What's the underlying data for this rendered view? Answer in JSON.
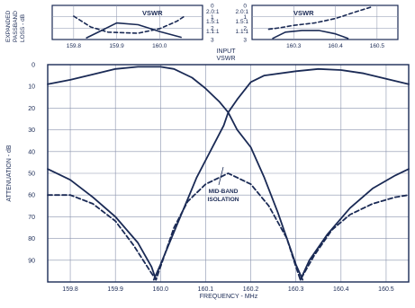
{
  "chart_data": [
    {
      "type": "line",
      "panel": "expanded-passband-left",
      "ylabel_lines": [
        "EXPANDED",
        "PASSBAND",
        "LOSS - dB"
      ],
      "xlim": [
        159.75,
        160.1
      ],
      "ylim": [
        0,
        3
      ],
      "x_ticks": [
        "159.8",
        "159.9",
        "160.0"
      ],
      "y_ticks": [
        "0",
        "1",
        "2",
        "3"
      ],
      "vswr_ticks": [
        "2.0:1",
        "1.5:1",
        "1.1:1"
      ],
      "vswr_label": "VSWR",
      "series": [
        {
          "style": "solid",
          "points": [
            [
              159.83,
              2.85
            ],
            [
              159.86,
              2.3
            ],
            [
              159.9,
              1.55
            ],
            [
              159.95,
              1.7
            ],
            [
              160.0,
              2.3
            ],
            [
              160.05,
              2.8
            ]
          ]
        },
        {
          "style": "dashed",
          "points": [
            [
              159.8,
              0.95
            ],
            [
              159.84,
              1.9
            ],
            [
              159.88,
              2.35
            ],
            [
              159.95,
              2.45
            ],
            [
              160.0,
              2.05
            ],
            [
              160.04,
              1.4
            ],
            [
              160.06,
              0.9
            ]
          ]
        }
      ]
    },
    {
      "type": "line",
      "panel": "expanded-passband-right",
      "xlim": [
        160.2,
        160.55
      ],
      "ylim": [
        0,
        3
      ],
      "x_ticks": [
        "160.3",
        "160.4",
        "160.5"
      ],
      "y_ticks": [
        "0",
        "1",
        "2",
        "3"
      ],
      "vswr_ticks": [
        "2.0:1",
        "1.5:1",
        "1.1:1"
      ],
      "vswr_label": "VSWR",
      "series": [
        {
          "style": "solid",
          "points": [
            [
              160.25,
              2.9
            ],
            [
              160.28,
              2.35
            ],
            [
              160.32,
              2.2
            ],
            [
              160.36,
              2.2
            ],
            [
              160.4,
              2.5
            ],
            [
              160.43,
              2.9
            ]
          ]
        },
        {
          "style": "dashed",
          "points": [
            [
              160.24,
              2.1
            ],
            [
              160.27,
              1.95
            ],
            [
              160.3,
              1.75
            ],
            [
              160.35,
              1.55
            ],
            [
              160.4,
              1.15
            ],
            [
              160.45,
              0.55
            ],
            [
              160.49,
              0.1
            ]
          ]
        }
      ]
    },
    {
      "type": "line",
      "panel": "main-attenuation",
      "xlabel": "FREQUENCY - MHz",
      "ylabel": "ATTENUATION - dB",
      "xlim": [
        159.75,
        160.55
      ],
      "ylim": [
        0,
        100
      ],
      "x_ticks": [
        "159.8",
        "159.9",
        "160.0",
        "160.1",
        "160.2",
        "160.3",
        "160.4",
        "160.5"
      ],
      "y_ticks": [
        "0",
        "10",
        "20",
        "30",
        "40",
        "50",
        "60",
        "70",
        "80",
        "90"
      ],
      "annotations": [
        "INPUT VSWR",
        "MID-BAND ISOLATION"
      ],
      "series": [
        {
          "style": "solid",
          "role": "passband-1",
          "points": [
            [
              159.75,
              9
            ],
            [
              159.8,
              7
            ],
            [
              159.85,
              4.5
            ],
            [
              159.9,
              2
            ],
            [
              159.95,
              1
            ],
            [
              160.0,
              1
            ],
            [
              160.03,
              2
            ],
            [
              160.07,
              6
            ],
            [
              160.1,
              11
            ],
            [
              160.13,
              17
            ],
            [
              160.15,
              22
            ],
            [
              160.17,
              30
            ],
            [
              160.2,
              38
            ],
            [
              160.23,
              52
            ],
            [
              160.26,
              68
            ],
            [
              160.28,
              80
            ],
            [
              160.3,
              92
            ],
            [
              160.315,
              99
            ]
          ]
        },
        {
          "style": "solid",
          "role": "passband-2",
          "points": [
            [
              159.985,
              99
            ],
            [
              160.0,
              92
            ],
            [
              160.03,
              77
            ],
            [
              160.06,
              62
            ],
            [
              160.08,
              52
            ],
            [
              160.1,
              44
            ],
            [
              160.12,
              36
            ],
            [
              160.14,
              28
            ],
            [
              160.15,
              22
            ],
            [
              160.17,
              16
            ],
            [
              160.2,
              8
            ],
            [
              160.23,
              5
            ],
            [
              160.3,
              3
            ],
            [
              160.35,
              2
            ],
            [
              160.4,
              2.5
            ],
            [
              160.45,
              4
            ],
            [
              160.5,
              6.5
            ],
            [
              160.55,
              9
            ]
          ]
        },
        {
          "style": "solid",
          "role": "outer-left",
          "points": [
            [
              159.75,
              48
            ],
            [
              159.8,
              53
            ],
            [
              159.85,
              61
            ],
            [
              159.9,
              70
            ],
            [
              159.95,
              82
            ],
            [
              159.98,
              93
            ],
            [
              159.99,
              99
            ]
          ]
        },
        {
          "style": "solid",
          "role": "outer-right",
          "points": [
            [
              160.31,
              99
            ],
            [
              160.33,
              90
            ],
            [
              160.37,
              78
            ],
            [
              160.42,
              66
            ],
            [
              160.47,
              57
            ],
            [
              160.52,
              51
            ],
            [
              160.55,
              48
            ]
          ]
        },
        {
          "style": "dashed",
          "role": "mid-band-isolation",
          "points": [
            [
              159.75,
              60
            ],
            [
              159.8,
              60
            ],
            [
              159.85,
              64
            ],
            [
              159.9,
              72
            ],
            [
              159.94,
              83
            ],
            [
              159.98,
              96
            ],
            [
              159.99,
              99
            ],
            [
              160.0,
              93
            ],
            [
              160.03,
              75
            ],
            [
              160.06,
              63
            ],
            [
              160.1,
              55
            ],
            [
              160.15,
              50
            ],
            [
              160.2,
              55
            ],
            [
              160.24,
              65
            ],
            [
              160.28,
              80
            ],
            [
              160.3,
              93
            ],
            [
              160.31,
              99
            ],
            [
              160.34,
              88
            ],
            [
              160.38,
              76
            ],
            [
              160.42,
              69
            ],
            [
              160.47,
              64
            ],
            [
              160.52,
              61
            ],
            [
              160.55,
              60
            ]
          ]
        }
      ]
    }
  ]
}
